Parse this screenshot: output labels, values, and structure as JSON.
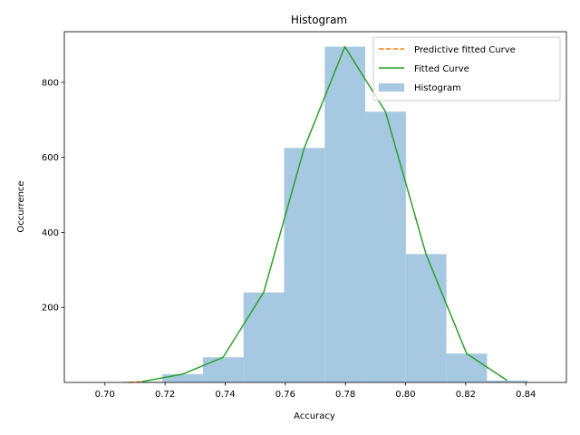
{
  "chart_data": {
    "type": "bar",
    "title": "Histogram",
    "xlabel": "Accuracy",
    "ylabel": "Occurrence",
    "xlim": [
      0.6865,
      0.8535
    ],
    "ylim": [
      0,
      935
    ],
    "xticks": [
      "0.70",
      "0.72",
      "0.74",
      "0.76",
      "0.78",
      "0.80",
      "0.82",
      "0.84"
    ],
    "xtick_values": [
      0.7,
      0.72,
      0.74,
      0.76,
      0.78,
      0.8,
      0.82,
      0.84
    ],
    "yticks": [
      "200",
      "400",
      "600",
      "800"
    ],
    "ytick_values": [
      200,
      400,
      600,
      800
    ],
    "grid": false,
    "legend_position": "top-right",
    "histogram": {
      "name": "Histogram",
      "color": "#a6c8e0",
      "bins": [
        {
          "x0": 0.7056,
          "x1": 0.7191,
          "count": 2
        },
        {
          "x0": 0.7191,
          "x1": 0.7326,
          "count": 22
        },
        {
          "x0": 0.7326,
          "x1": 0.7461,
          "count": 67
        },
        {
          "x0": 0.7461,
          "x1": 0.7596,
          "count": 240
        },
        {
          "x0": 0.7596,
          "x1": 0.7731,
          "count": 625
        },
        {
          "x0": 0.7731,
          "x1": 0.7866,
          "count": 895
        },
        {
          "x0": 0.7866,
          "x1": 0.8001,
          "count": 722
        },
        {
          "x0": 0.8001,
          "x1": 0.8136,
          "count": 342
        },
        {
          "x0": 0.8136,
          "x1": 0.8271,
          "count": 77
        },
        {
          "x0": 0.8271,
          "x1": 0.8406,
          "count": 5
        }
      ]
    },
    "series": [
      {
        "name": "Fitted Curve",
        "color": "#2ca02c",
        "style": "solid",
        "x": [
          0.7123,
          0.7258,
          0.7393,
          0.7528,
          0.7663,
          0.7798,
          0.7933,
          0.8068,
          0.8203,
          0.8338
        ],
        "y": [
          2,
          22,
          67,
          240,
          625,
          895,
          722,
          342,
          77,
          5
        ]
      },
      {
        "name": "Predictive fitted Curve",
        "color": "#ff7f0e",
        "style": "dashed",
        "x": [
          0.708,
          0.7123
        ],
        "y": [
          0,
          2
        ]
      }
    ],
    "legend": [
      "Predictive fitted Curve",
      "Fitted Curve",
      "Histogram"
    ]
  }
}
